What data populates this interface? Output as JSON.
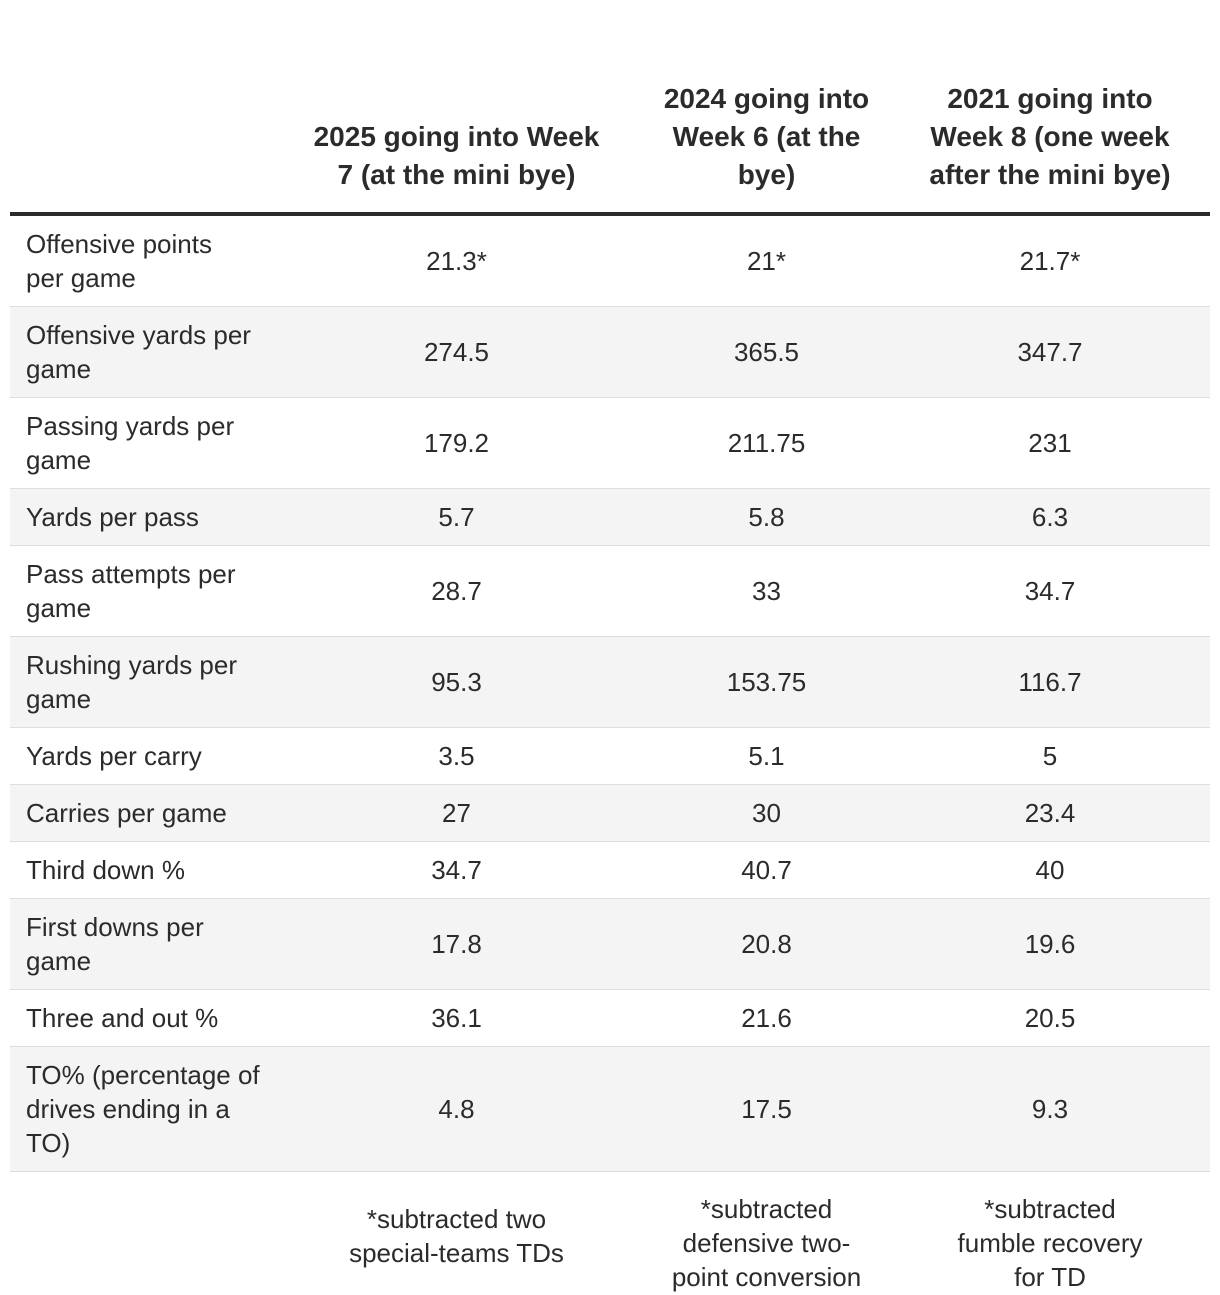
{
  "table": {
    "headers": [
      "",
      "2025 going into Week 7 (at the mini bye)",
      "2024 going into Week 6 (at the bye)",
      "2021 going into Week 8 (one week after the mini bye)"
    ],
    "rows": [
      {
        "label": "Offensive points per game",
        "values": [
          "21.3*",
          "21*",
          "21.7*"
        ]
      },
      {
        "label": "Offensive yards per game",
        "values": [
          "274.5",
          "365.5",
          "347.7"
        ]
      },
      {
        "label": "Passing yards per game",
        "values": [
          "179.2",
          "211.75",
          "231"
        ]
      },
      {
        "label": "Yards per pass",
        "values": [
          "5.7",
          "5.8",
          "6.3"
        ]
      },
      {
        "label": "Pass attempts per game",
        "values": [
          "28.7",
          "33",
          "34.7"
        ]
      },
      {
        "label": "Rushing yards per game",
        "values": [
          "95.3",
          "153.75",
          "116.7"
        ]
      },
      {
        "label": "Yards per carry",
        "values": [
          "3.5",
          "5.1",
          "5"
        ]
      },
      {
        "label": "Carries per game",
        "values": [
          "27",
          "30",
          "23.4"
        ]
      },
      {
        "label": "Third down %",
        "values": [
          "34.7",
          "40.7",
          "40"
        ]
      },
      {
        "label": "First downs per game",
        "values": [
          "17.8",
          "20.8",
          "19.6"
        ]
      },
      {
        "label": "Three and out %",
        "values": [
          "36.1",
          "21.6",
          "20.5"
        ]
      },
      {
        "label": "TO% (percentage of drives ending in a TO)",
        "values": [
          "4.8",
          "17.5",
          "9.3"
        ]
      }
    ],
    "footnotes": [
      "*subtracted two special-teams TDs",
      "*subtracted defensive two-point conversion",
      "*subtracted fumble recovery for TD"
    ]
  }
}
